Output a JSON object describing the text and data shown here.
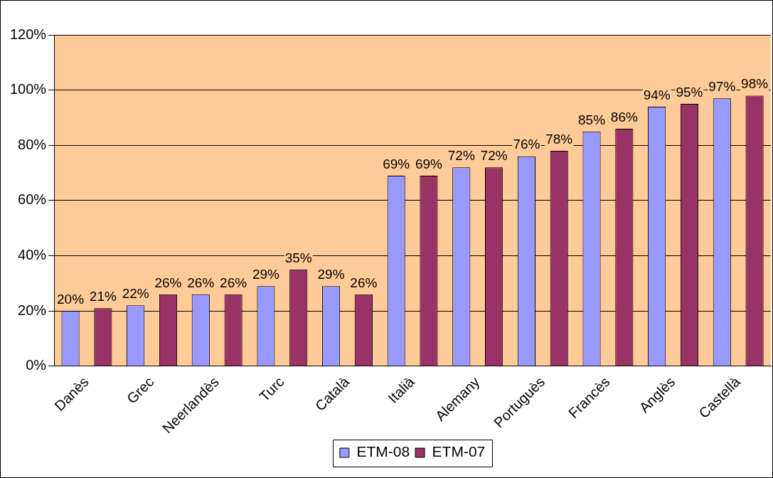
{
  "chart_data": {
    "type": "bar",
    "categories": [
      "Danès",
      "Grec",
      "Neerlandès",
      "Turc",
      "Català",
      "Italià",
      "Alemany",
      "Portuguès",
      "Francès",
      "Anglès",
      "Castellà"
    ],
    "series": [
      {
        "name": "ETM-08",
        "color": "#9999ff",
        "values": [
          20,
          22,
          26,
          29,
          29,
          69,
          72,
          76,
          85,
          94,
          97
        ],
        "value_labels": [
          "20%",
          "22%",
          "26%",
          "29%",
          "29%",
          "69%",
          "72%",
          "76%",
          "85%",
          "94%",
          "97%"
        ]
      },
      {
        "name": "ETM-07",
        "color": "#993366",
        "values": [
          21,
          26,
          26,
          35,
          26,
          69,
          72,
          78,
          86,
          95,
          98
        ],
        "value_labels": [
          "21%",
          "26%",
          "26%",
          "35%",
          "26%",
          "69%",
          "72%",
          "78%",
          "86%",
          "95%",
          "98%"
        ]
      }
    ],
    "ylim": [
      0,
      120
    ],
    "yticks": [
      {
        "value": 0,
        "label": "0%"
      },
      {
        "value": 20,
        "label": "20%"
      },
      {
        "value": 40,
        "label": "40%"
      },
      {
        "value": 60,
        "label": "60%"
      },
      {
        "value": 80,
        "label": "80%"
      },
      {
        "value": 100,
        "label": "100%"
      },
      {
        "value": 120,
        "label": "120%"
      }
    ],
    "grid": "y",
    "legend": "bottom"
  }
}
